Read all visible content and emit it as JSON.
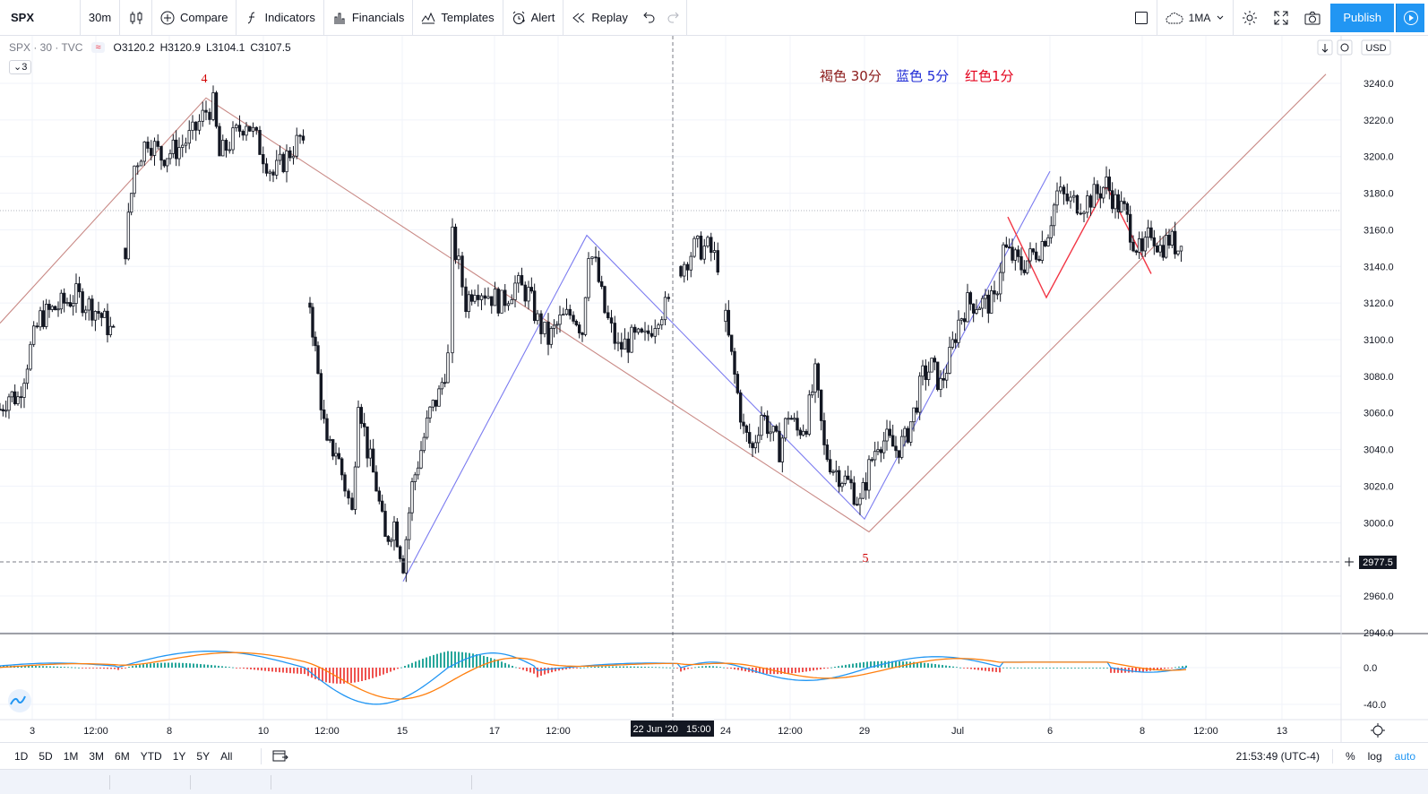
{
  "toolbar": {
    "symbol": "SPX",
    "interval": "30m",
    "compare": "Compare",
    "indicators": "Indicators",
    "financials": "Financials",
    "templates": "Templates",
    "alert": "Alert",
    "replay": "Replay",
    "ma_label": "1MA",
    "publish": "Publish"
  },
  "legend": {
    "title": "SPX · 30 · TVC",
    "badge": "≈",
    "open": "O3120.2",
    "high": "H3120.9",
    "low": "L3104.1",
    "close": "C3107.5",
    "collapse": "⌄3"
  },
  "annotations": {
    "wave4": "4",
    "wave5": "5",
    "note_brown": "褐色  30分",
    "note_blue": "蓝色  5分",
    "note_red": "红色1分"
  },
  "price_axis": {
    "currency": "USD",
    "ticks": [
      "3240.0",
      "3220.0",
      "3200.0",
      "3180.0",
      "3160.0",
      "3140.0",
      "3120.0",
      "3100.0",
      "3080.0",
      "3060.0",
      "3040.0",
      "3020.0",
      "3000.0",
      "2960.0",
      "2940.0"
    ],
    "crosshair_price": "2977.5",
    "macd_ticks": [
      "0.0",
      "-40.0"
    ]
  },
  "time_axis": {
    "ticks": [
      "3",
      "12:00",
      "8",
      "10",
      "12:00",
      "15",
      "17",
      "12:00",
      "24",
      "12:00",
      "29",
      "Jul",
      "6",
      "8",
      "12:00",
      "13"
    ],
    "crosshair_time": "22 Jun '20   15:00"
  },
  "bottombar": {
    "ranges": [
      "1D",
      "5D",
      "1M",
      "3M",
      "6M",
      "YTD",
      "1Y",
      "5Y",
      "All"
    ],
    "clock": "21:53:49 (UTC-4)",
    "percent": "%",
    "log": "log",
    "auto": "auto"
  },
  "colors": {
    "up": "#26a69a",
    "down": "#ef5350",
    "brown": "#c98a86",
    "blue": "#7b7bf0",
    "red": "#f23645",
    "accent": "#2196f3"
  },
  "chart_data": {
    "type": "candlestick",
    "price_range": [
      2940,
      3240
    ],
    "ohlc_current": {
      "open": 3120.2,
      "high": 3120.9,
      "low": 3104.1,
      "close": 3107.5
    },
    "crosshair": {
      "price": 2977.5,
      "time": "22 Jun '20 15:00"
    },
    "macd_range": [
      -40,
      0
    ],
    "close_path": [
      [
        0,
        3062
      ],
      [
        10,
        3070
      ],
      [
        20,
        3068
      ],
      [
        34,
        3095
      ],
      [
        45,
        3112
      ],
      [
        65,
        3118
      ],
      [
        85,
        3124
      ],
      [
        110,
        3115
      ],
      [
        130,
        3100
      ],
      [
        140,
        3150
      ],
      [
        150,
        3195
      ],
      [
        165,
        3210
      ],
      [
        180,
        3200
      ],
      [
        200,
        3205
      ],
      [
        215,
        3212
      ],
      [
        230,
        3225
      ],
      [
        238,
        3228
      ],
      [
        245,
        3200
      ],
      [
        260,
        3210
      ],
      [
        275,
        3220
      ],
      [
        290,
        3205
      ],
      [
        305,
        3190
      ],
      [
        320,
        3200
      ],
      [
        335,
        3210
      ],
      [
        342,
        3195
      ],
      [
        346,
        3120
      ],
      [
        355,
        3080
      ],
      [
        365,
        3040
      ],
      [
        375,
        3040
      ],
      [
        385,
        3020
      ],
      [
        393,
        3005
      ],
      [
        400,
        3070
      ],
      [
        410,
        3040
      ],
      [
        420,
        3020
      ],
      [
        430,
        2990
      ],
      [
        440,
        3000
      ],
      [
        450,
        2978
      ],
      [
        460,
        3020
      ],
      [
        470,
        3040
      ],
      [
        480,
        3060
      ],
      [
        490,
        3070
      ],
      [
        500,
        3090
      ],
      [
        505,
        3155
      ],
      [
        512,
        3140
      ],
      [
        520,
        3120
      ],
      [
        530,
        3130
      ],
      [
        545,
        3125
      ],
      [
        560,
        3120
      ],
      [
        575,
        3130
      ],
      [
        590,
        3125
      ],
      [
        600,
        3110
      ],
      [
        612,
        3100
      ],
      [
        625,
        3110
      ],
      [
        640,
        3115
      ],
      [
        650,
        3105
      ],
      [
        657,
        3150
      ],
      [
        665,
        3140
      ],
      [
        675,
        3115
      ],
      [
        690,
        3095
      ],
      [
        705,
        3100
      ],
      [
        720,
        3100
      ],
      [
        735,
        3115
      ],
      [
        750,
        3120
      ],
      [
        760,
        3140
      ],
      [
        775,
        3150
      ],
      [
        790,
        3150
      ],
      [
        805,
        3140
      ],
      [
        810,
        3110
      ],
      [
        820,
        3080
      ],
      [
        830,
        3050
      ],
      [
        840,
        3040
      ],
      [
        850,
        3060
      ],
      [
        860,
        3050
      ],
      [
        870,
        3040
      ],
      [
        880,
        3060
      ],
      [
        890,
        3050
      ],
      [
        900,
        3055
      ],
      [
        910,
        3080
      ],
      [
        920,
        3040
      ],
      [
        930,
        3030
      ],
      [
        940,
        3025
      ],
      [
        950,
        3020
      ],
      [
        960,
        3010
      ],
      [
        970,
        3030
      ],
      [
        980,
        3045
      ],
      [
        990,
        3045
      ],
      [
        1000,
        3040
      ],
      [
        1010,
        3045
      ],
      [
        1020,
        3060
      ],
      [
        1030,
        3080
      ],
      [
        1040,
        3085
      ],
      [
        1050,
        3075
      ],
      [
        1060,
        3090
      ],
      [
        1070,
        3110
      ],
      [
        1080,
        3120
      ],
      [
        1090,
        3120
      ],
      [
        1100,
        3120
      ],
      [
        1110,
        3120
      ],
      [
        1120,
        3150
      ],
      [
        1130,
        3145
      ],
      [
        1140,
        3140
      ],
      [
        1150,
        3145
      ],
      [
        1160,
        3150
      ],
      [
        1170,
        3160
      ],
      [
        1180,
        3180
      ],
      [
        1195,
        3175
      ],
      [
        1210,
        3175
      ],
      [
        1225,
        3180
      ],
      [
        1235,
        3185
      ],
      [
        1245,
        3175
      ],
      [
        1255,
        3170
      ],
      [
        1265,
        3155
      ],
      [
        1275,
        3145
      ],
      [
        1285,
        3160
      ],
      [
        1295,
        3150
      ],
      [
        1305,
        3155
      ],
      [
        1315,
        3150
      ],
      [
        1322,
        3165
      ]
    ],
    "trend_lines": [
      {
        "color": "brown",
        "points": [
          [
            0,
            3109
          ],
          [
            230,
            3232
          ],
          [
            970,
            2995
          ],
          [
            1480,
            3245
          ]
        ]
      },
      {
        "color": "blue",
        "points": [
          [
            450,
            2968
          ],
          [
            655,
            3157
          ],
          [
            965,
            3002
          ],
          [
            1172,
            3192
          ]
        ]
      },
      {
        "color": "red",
        "points": [
          [
            1125,
            3167
          ],
          [
            1168,
            3123
          ],
          [
            1235,
            3184
          ],
          [
            1285,
            3136
          ]
        ]
      }
    ]
  }
}
